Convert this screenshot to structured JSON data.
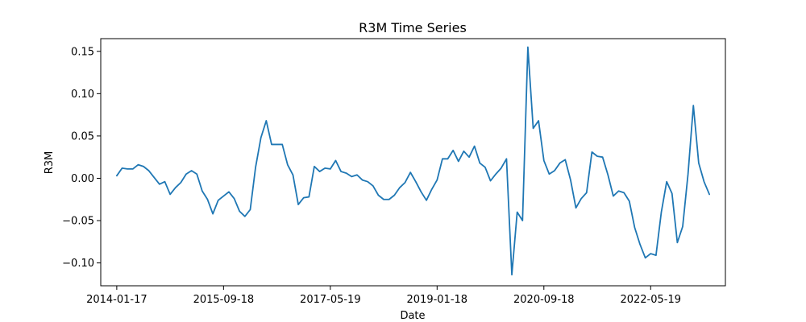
{
  "chart_data": {
    "type": "line",
    "title": "R3M Time Series",
    "xlabel": "Date",
    "ylabel": "R3M",
    "x_ticks": [
      "2014-01-17",
      "2015-09-18",
      "2017-05-19",
      "2019-01-18",
      "2020-09-18",
      "2022-05-19"
    ],
    "y_ticks": [
      "0.15",
      "0.10",
      "0.05",
      "0.00",
      "−0.05",
      "−0.10"
    ],
    "y_tick_values": [
      0.15,
      0.1,
      0.05,
      0.0,
      -0.05,
      -0.1
    ],
    "ylim": [
      -0.127,
      0.165
    ],
    "x_range_months": [
      -3,
      114
    ],
    "grid": false,
    "series": [
      {
        "color": "#1f77b4",
        "points": [
          [
            0,
            0.003
          ],
          [
            1,
            0.012
          ],
          [
            2,
            0.011
          ],
          [
            3,
            0.011
          ],
          [
            4,
            0.016
          ],
          [
            5,
            0.014
          ],
          [
            6,
            0.009
          ],
          [
            7,
            0.001
          ],
          [
            8,
            -0.007
          ],
          [
            9,
            -0.004
          ],
          [
            10,
            -0.019
          ],
          [
            11,
            -0.011
          ],
          [
            12,
            -0.005
          ],
          [
            13,
            0.005
          ],
          [
            14,
            0.009
          ],
          [
            15,
            0.005
          ],
          [
            16,
            -0.015
          ],
          [
            17,
            -0.025
          ],
          [
            18,
            -0.042
          ],
          [
            19,
            -0.026
          ],
          [
            20,
            -0.021
          ],
          [
            21,
            -0.016
          ],
          [
            22,
            -0.024
          ],
          [
            23,
            -0.039
          ],
          [
            24,
            -0.045
          ],
          [
            25,
            -0.037
          ],
          [
            26,
            0.013
          ],
          [
            27,
            0.048
          ],
          [
            28,
            0.068
          ],
          [
            29,
            0.04
          ],
          [
            30,
            0.04
          ],
          [
            31,
            0.04
          ],
          [
            32,
            0.016
          ],
          [
            33,
            0.004
          ],
          [
            34,
            -0.031
          ],
          [
            35,
            -0.023
          ],
          [
            36,
            -0.022
          ],
          [
            37,
            0.014
          ],
          [
            38,
            0.008
          ],
          [
            39,
            0.012
          ],
          [
            40,
            0.011
          ],
          [
            41,
            0.021
          ],
          [
            42,
            0.008
          ],
          [
            43,
            0.006
          ],
          [
            44,
            0.002
          ],
          [
            45,
            0.004
          ],
          [
            46,
            -0.002
          ],
          [
            47,
            -0.004
          ],
          [
            48,
            -0.009
          ],
          [
            49,
            -0.02
          ],
          [
            50,
            -0.025
          ],
          [
            51,
            -0.025
          ],
          [
            52,
            -0.02
          ],
          [
            53,
            -0.011
          ],
          [
            54,
            -0.005
          ],
          [
            55,
            0.007
          ],
          [
            56,
            -0.004
          ],
          [
            57,
            -0.016
          ],
          [
            58,
            -0.026
          ],
          [
            59,
            -0.013
          ],
          [
            60,
            -0.002
          ],
          [
            61,
            0.023
          ],
          [
            62,
            0.023
          ],
          [
            63,
            0.033
          ],
          [
            64,
            0.02
          ],
          [
            65,
            0.032
          ],
          [
            66,
            0.025
          ],
          [
            67,
            0.038
          ],
          [
            68,
            0.018
          ],
          [
            69,
            0.013
          ],
          [
            70,
            -0.003
          ],
          [
            71,
            0.005
          ],
          [
            72,
            0.012
          ],
          [
            73,
            0.023
          ],
          [
            74,
            -0.114
          ],
          [
            75,
            -0.04
          ],
          [
            76,
            -0.05
          ],
          [
            77,
            0.155
          ],
          [
            78,
            0.059
          ],
          [
            79,
            0.068
          ],
          [
            80,
            0.021
          ],
          [
            81,
            0.005
          ],
          [
            82,
            0.009
          ],
          [
            83,
            0.018
          ],
          [
            84,
            0.022
          ],
          [
            85,
            -0.002
          ],
          [
            86,
            -0.035
          ],
          [
            87,
            -0.024
          ],
          [
            88,
            -0.017
          ],
          [
            89,
            0.031
          ],
          [
            90,
            0.026
          ],
          [
            91,
            0.025
          ],
          [
            92,
            0.004
          ],
          [
            93,
            -0.021
          ],
          [
            94,
            -0.015
          ],
          [
            95,
            -0.017
          ],
          [
            96,
            -0.027
          ],
          [
            97,
            -0.058
          ],
          [
            98,
            -0.078
          ],
          [
            99,
            -0.094
          ],
          [
            100,
            -0.089
          ],
          [
            101,
            -0.091
          ],
          [
            102,
            -0.04
          ],
          [
            103,
            -0.004
          ],
          [
            104,
            -0.018
          ],
          [
            105,
            -0.076
          ],
          [
            106,
            -0.057
          ],
          [
            107,
            0.005
          ],
          [
            108,
            0.086
          ],
          [
            109,
            0.018
          ],
          [
            110,
            -0.004
          ],
          [
            111,
            -0.019
          ]
        ]
      }
    ]
  }
}
